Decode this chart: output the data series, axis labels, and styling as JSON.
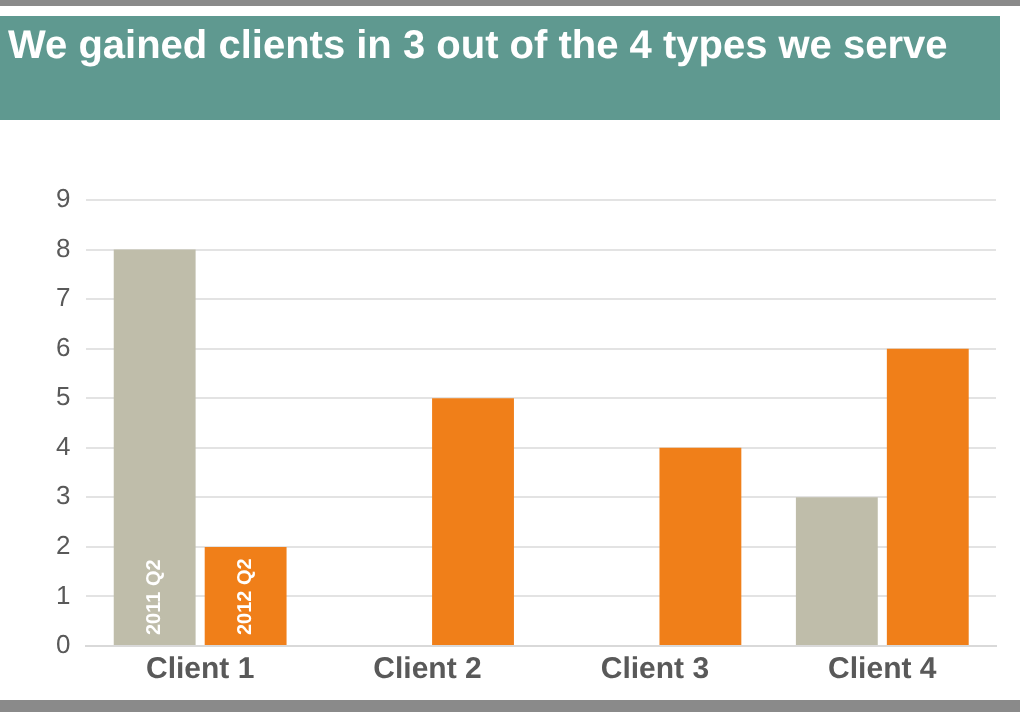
{
  "chart_data": {
    "type": "bar",
    "title": "We gained clients in 3 out of the 4 types we serve",
    "categories": [
      "Client 1",
      "Client 2",
      "Client 3",
      "Client 4"
    ],
    "series": [
      {
        "name": "2011 Q2",
        "color": "#bfbdaa",
        "values": [
          8,
          0,
          0,
          3
        ]
      },
      {
        "name": "2012 Q2",
        "color": "#f07f19",
        "values": [
          2,
          5,
          4,
          6
        ]
      }
    ],
    "ylim": [
      0,
      9
    ],
    "yticks": [
      0,
      1,
      2,
      3,
      4,
      5,
      6,
      7,
      8,
      9
    ],
    "grid": "y",
    "legend": false
  }
}
